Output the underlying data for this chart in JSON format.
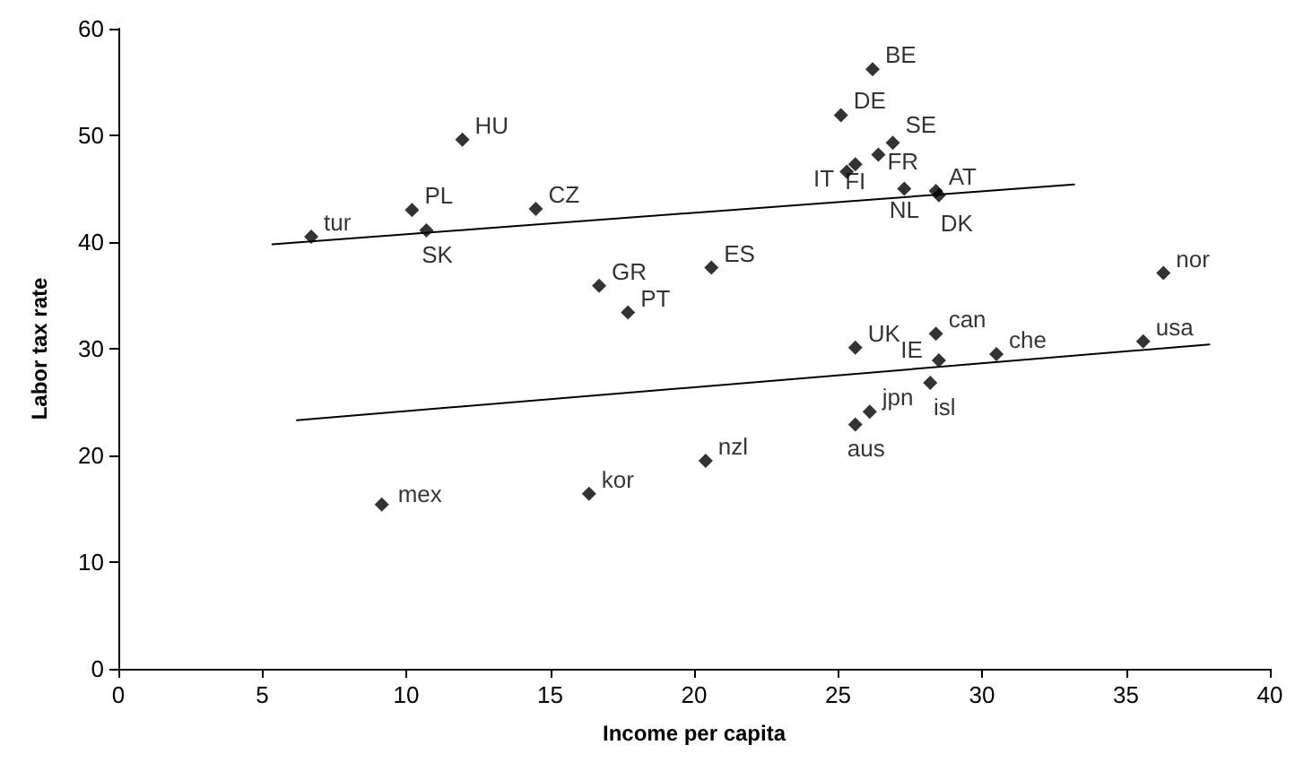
{
  "chart_data": {
    "type": "scatter",
    "xlabel": "Income per capita",
    "ylabel": "Labor tax rate",
    "xlim": [
      0,
      40
    ],
    "xticks": [
      0,
      5,
      10,
      15,
      20,
      25,
      30,
      35,
      40
    ],
    "ylim": [
      0,
      60
    ],
    "yticks": [
      0,
      10,
      20,
      30,
      40,
      50,
      60
    ],
    "grid": false,
    "marker": "diamond",
    "series": [
      {
        "color": "#000000",
        "x": [
          6.7,
          10.2,
          10.7,
          11.95,
          14.5,
          16.7,
          17.7,
          9.15,
          16.35,
          20.6,
          20.4,
          26.2,
          25.1,
          25.3,
          25.6,
          26.4,
          26.9,
          27.3,
          28.4,
          28.5,
          36.3,
          35.6,
          28.4,
          25.6,
          28.5,
          30.5,
          28.2,
          26.1,
          25.6
        ],
        "values": [
          40.5,
          43.0,
          41.1,
          49.6,
          43.1,
          35.9,
          33.4,
          15.4,
          16.4,
          37.6,
          19.5,
          56.2,
          51.9,
          46.6,
          47.3,
          48.2,
          49.3,
          45.0,
          44.8,
          44.4,
          37.1,
          30.7,
          31.4,
          30.1,
          28.9,
          29.5,
          26.8,
          24.1,
          22.9
        ]
      },
      {
        "type": "line",
        "color": "#000000",
        "marker": "none",
        "x": [
          5.35,
          33.2
        ],
        "values": [
          39.8,
          45.4
        ]
      },
      {
        "type": "line",
        "color": "#000000",
        "marker": "none",
        "x": [
          6.2,
          37.9
        ],
        "values": [
          23.3,
          30.4
        ]
      }
    ],
    "annotations": [
      {
        "text": "tur",
        "x": 6.7,
        "y": 40.5
      },
      {
        "text": "PL",
        "x": 10.2,
        "y": 43.0
      },
      {
        "text": "SK",
        "x": 10.7,
        "y": 41.1
      },
      {
        "text": "HU",
        "x": 11.95,
        "y": 49.6
      },
      {
        "text": "CZ",
        "x": 14.5,
        "y": 43.1
      },
      {
        "text": "GR",
        "x": 16.7,
        "y": 35.9
      },
      {
        "text": "PT",
        "x": 17.7,
        "y": 33.4
      },
      {
        "text": "mex",
        "x": 9.15,
        "y": 15.4
      },
      {
        "text": "kor",
        "x": 16.35,
        "y": 16.4
      },
      {
        "text": "ES",
        "x": 20.6,
        "y": 37.6
      },
      {
        "text": "nzl",
        "x": 20.4,
        "y": 19.5
      },
      {
        "text": "BE",
        "x": 26.2,
        "y": 56.2
      },
      {
        "text": "DE",
        "x": 25.1,
        "y": 51.9
      },
      {
        "text": "IT",
        "x": 25.3,
        "y": 46.6
      },
      {
        "text": "FI",
        "x": 25.6,
        "y": 47.3
      },
      {
        "text": "FR",
        "x": 26.4,
        "y": 48.2
      },
      {
        "text": "SE",
        "x": 26.9,
        "y": 49.3
      },
      {
        "text": "NL",
        "x": 27.3,
        "y": 45.0
      },
      {
        "text": "AT",
        "x": 28.4,
        "y": 44.8
      },
      {
        "text": "DK",
        "x": 28.5,
        "y": 44.4
      },
      {
        "text": "nor",
        "x": 36.3,
        "y": 37.1
      },
      {
        "text": "usa",
        "x": 35.6,
        "y": 30.7
      },
      {
        "text": "can",
        "x": 28.4,
        "y": 31.4
      },
      {
        "text": "UK",
        "x": 25.6,
        "y": 30.1
      },
      {
        "text": "IE",
        "x": 28.5,
        "y": 28.9
      },
      {
        "text": "che",
        "x": 30.5,
        "y": 29.5
      },
      {
        "text": "isl",
        "x": 28.2,
        "y": 26.8
      },
      {
        "text": "jpn",
        "x": 26.1,
        "y": 24.1
      },
      {
        "text": "aus",
        "x": 25.6,
        "y": 22.9
      }
    ]
  }
}
